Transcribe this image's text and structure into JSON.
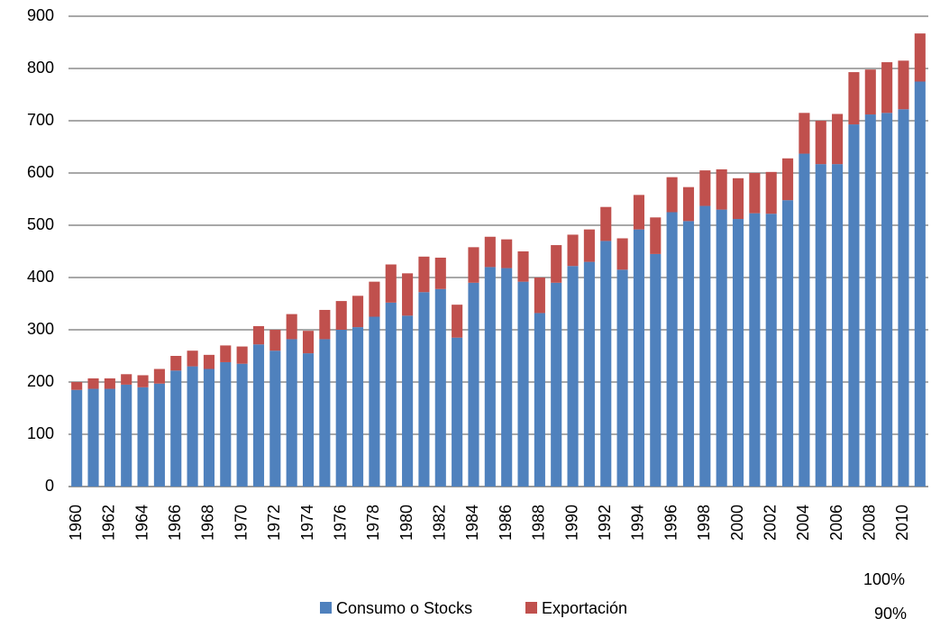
{
  "chart_data": {
    "type": "bar",
    "stacked": true,
    "categories": [
      "1960",
      null,
      "1962",
      null,
      "1964",
      null,
      "1966",
      null,
      "1968",
      null,
      "1970",
      null,
      "1972",
      null,
      "1974",
      null,
      "1976",
      null,
      "1978",
      null,
      "1980",
      null,
      "1982",
      null,
      "1984",
      null,
      "1986",
      null,
      "1988",
      null,
      "1990",
      null,
      "1992",
      null,
      "1994",
      null,
      "1996",
      null,
      "1998",
      null,
      "2000",
      null,
      "2002",
      null,
      "2004",
      null,
      "2006",
      null,
      "2008",
      null,
      "2010",
      null
    ],
    "series": [
      {
        "name": "Consumo o Stocks",
        "color": "#4f81bd",
        "values": [
          185,
          187,
          187,
          195,
          190,
          197,
          222,
          230,
          225,
          238,
          235,
          272,
          260,
          282,
          255,
          282,
          300,
          305,
          325,
          352,
          327,
          372,
          378,
          285,
          390,
          420,
          418,
          392,
          332,
          390,
          422,
          430,
          470,
          415,
          492,
          445,
          525,
          508,
          537,
          530,
          512,
          523,
          522,
          548,
          637,
          617,
          617,
          693,
          712,
          715,
          722,
          775
        ]
      },
      {
        "name": "Exportación",
        "color": "#c0504d",
        "values": [
          15,
          20,
          20,
          20,
          23,
          28,
          28,
          30,
          27,
          32,
          33,
          35,
          40,
          48,
          43,
          56,
          55,
          60,
          67,
          73,
          81,
          68,
          60,
          63,
          68,
          58,
          55,
          58,
          68,
          72,
          60,
          62,
          65,
          60,
          66,
          70,
          67,
          65,
          68,
          77,
          78,
          77,
          80,
          80,
          78,
          83,
          96,
          100,
          86,
          97,
          93,
          92
        ]
      }
    ],
    "ylim": [
      0,
      900
    ],
    "yticks": [
      0,
      100,
      200,
      300,
      400,
      500,
      600,
      700,
      800,
      900
    ],
    "grid": true,
    "legend": "bottom",
    "annotations": [
      "100%",
      "90%"
    ]
  }
}
